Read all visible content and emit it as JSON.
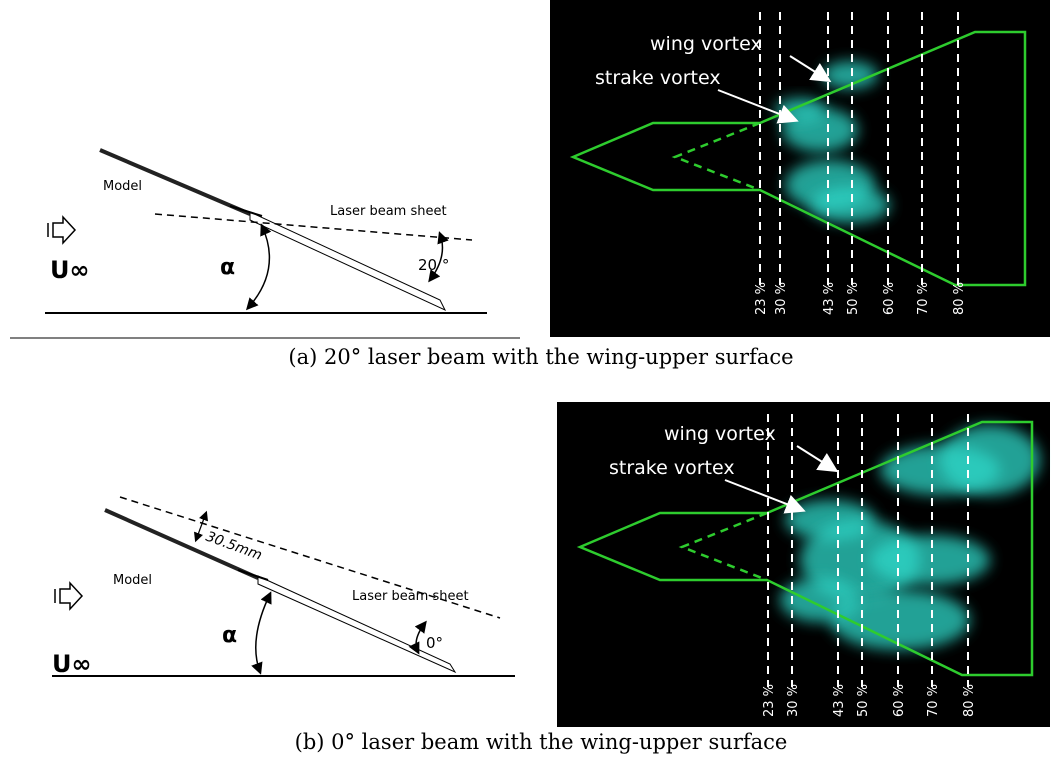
{
  "panels": [
    {
      "schematic": {
        "model": "Model",
        "laser": "Laser beam sheet",
        "angle": "20 °",
        "alpha": "α",
        "flow": "U∞"
      },
      "visualization": {
        "wing_vortex": "wing vortex",
        "strake_vortex": "strake vortex",
        "stations": [
          "23 %",
          "30 %",
          "43 %",
          "50 %",
          "60 %",
          "70 %",
          "80 %"
        ]
      },
      "caption": "(a) 20° laser beam with the wing-upper surface"
    },
    {
      "schematic": {
        "model": "Model",
        "offset": "30.5mm",
        "laser": "Laser beam sheet",
        "angle": "0°",
        "alpha": "α",
        "flow": "U∞"
      },
      "visualization": {
        "wing_vortex": "wing vortex",
        "strake_vortex": "strake vortex",
        "stations": [
          "23 %",
          "30 %",
          "43 %",
          "50 %",
          "60 %",
          "70 %",
          "80 %"
        ]
      },
      "caption": "(b) 0° laser beam with the wing-upper surface"
    }
  ]
}
